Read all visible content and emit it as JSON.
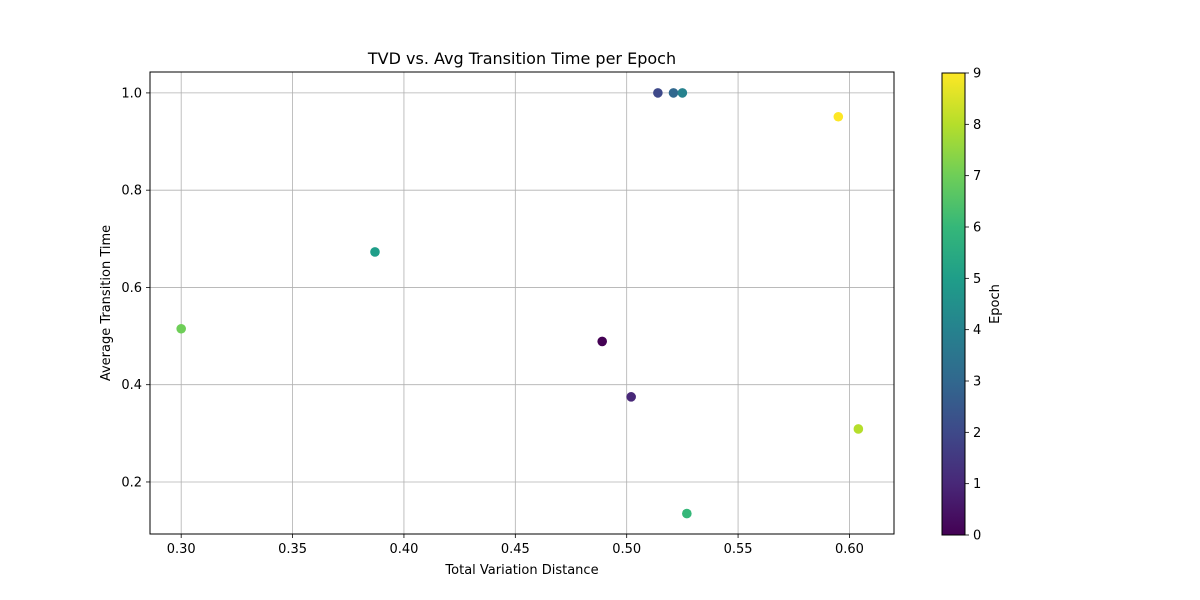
{
  "chart_data": {
    "type": "scatter",
    "title": "TVD vs. Avg Transition Time per Epoch",
    "xlabel": "Total Variation Distance",
    "ylabel": "Average Transition Time",
    "xlim": [
      0.286,
      0.62
    ],
    "ylim": [
      0.093,
      1.043
    ],
    "xticks": [
      0.3,
      0.35,
      0.4,
      0.45,
      0.5,
      0.55,
      0.6
    ],
    "xtick_labels": [
      "0.30",
      "0.35",
      "0.40",
      "0.45",
      "0.50",
      "0.55",
      "0.60"
    ],
    "yticks": [
      0.2,
      0.4,
      0.6,
      0.8,
      1.0
    ],
    "ytick_labels": [
      "0.2",
      "0.4",
      "0.6",
      "0.8",
      "1.0"
    ],
    "grid": true,
    "points": [
      {
        "epoch": 0,
        "x": 0.489,
        "y": 0.489
      },
      {
        "epoch": 1,
        "x": 0.502,
        "y": 0.375
      },
      {
        "epoch": 2,
        "x": 0.514,
        "y": 1.0
      },
      {
        "epoch": 3,
        "x": 0.521,
        "y": 1.0
      },
      {
        "epoch": 4,
        "x": 0.525,
        "y": 1.0
      },
      {
        "epoch": 5,
        "x": 0.387,
        "y": 0.673
      },
      {
        "epoch": 6,
        "x": 0.527,
        "y": 0.135
      },
      {
        "epoch": 7,
        "x": 0.3,
        "y": 0.515
      },
      {
        "epoch": 8,
        "x": 0.604,
        "y": 0.309
      },
      {
        "epoch": 9,
        "x": 0.595,
        "y": 0.951
      }
    ],
    "colorbar": {
      "label": "Epoch",
      "range": [
        0,
        9
      ],
      "ticks": [
        0,
        1,
        2,
        3,
        4,
        5,
        6,
        7,
        8,
        9
      ],
      "tick_labels": [
        "0",
        "1",
        "2",
        "3",
        "4",
        "5",
        "6",
        "7",
        "8",
        "9"
      ],
      "colormap": "viridis",
      "stops": [
        "#440154",
        "#482878",
        "#3e4989",
        "#31688e",
        "#26828e",
        "#1f9e89",
        "#35b779",
        "#6ece58",
        "#b5de2b",
        "#fde725"
      ]
    }
  }
}
